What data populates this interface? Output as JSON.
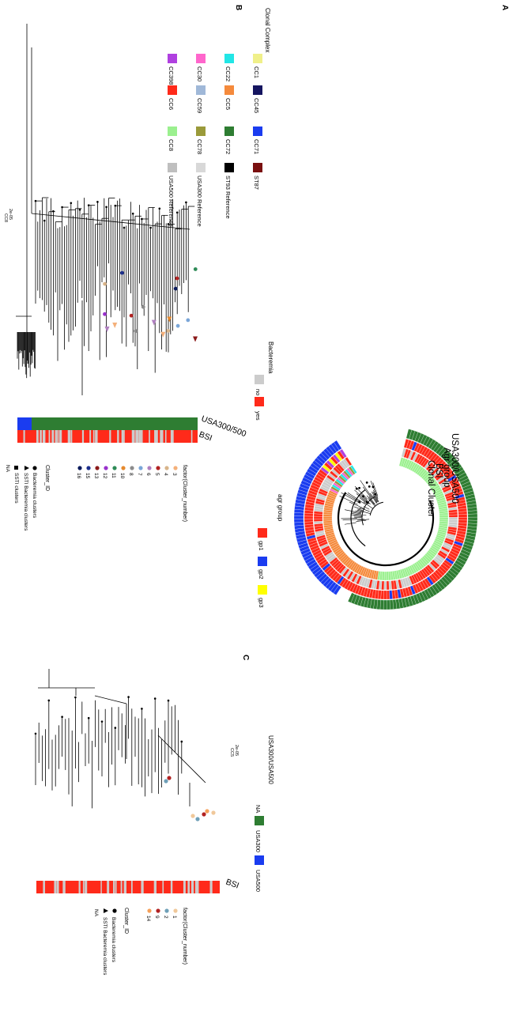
{
  "panel_labels": {
    "a": "A",
    "b": "B",
    "c": "C"
  },
  "panel_a": {
    "ring_labels": [
      "USA300/USA500",
      "Agr group",
      "BSI",
      "Clonal Cluster"
    ],
    "agr_legend": {
      "title": "agr group",
      "items": [
        {
          "label": "gp1",
          "color": "#ff2a1a"
        },
        {
          "label": "gp2",
          "color": "#1a3cf0"
        },
        {
          "label": "gp3",
          "color": "#ffff00"
        }
      ]
    },
    "colors": {
      "usa300": "#2e7d32",
      "usa500": "#1a3cf0",
      "bsi_yes": "#ff2a1a",
      "bsi_no": "#cccccc",
      "cc8": "#9bf08f",
      "cc5": "#f58a3c"
    }
  },
  "clonal_complex_legend": {
    "title": "Clonal Complex",
    "items": [
      {
        "label": "CC1",
        "color": "#f0f08a"
      },
      {
        "label": "CC22",
        "color": "#22e6e6"
      },
      {
        "label": "CC30",
        "color": "#ff66cc"
      },
      {
        "label": "CC398",
        "color": "#b040e0"
      },
      {
        "label": "CC45",
        "color": "#151560"
      },
      {
        "label": "CC5",
        "color": "#f58a3c"
      },
      {
        "label": "CC59",
        "color": "#a0b8d8"
      },
      {
        "label": "CC6",
        "color": "#ff2a1a"
      },
      {
        "label": "CC71",
        "color": "#1a3cf0"
      },
      {
        "label": "CC72",
        "color": "#2e7d32"
      },
      {
        "label": "CC78",
        "color": "#9a9a3a"
      },
      {
        "label": "CC8",
        "color": "#9bf08f"
      },
      {
        "label": "ST87",
        "color": "#7a1010"
      },
      {
        "label": "ST93 Reference",
        "color": "#000000"
      },
      {
        "label": "USA300 Reference",
        "color": "#d8d8d8"
      },
      {
        "label": "USA500 Reference",
        "color": "#bfbfbf"
      }
    ]
  },
  "panel_b": {
    "bacteremia_legend": {
      "title": "Bacteremia",
      "items": [
        {
          "label": "no",
          "color": "#cccccc"
        },
        {
          "label": "yes",
          "color": "#ff2a1a"
        }
      ]
    },
    "strip_labels": [
      "USA300/500",
      "BSI"
    ],
    "cluster_legend": {
      "title": "factor(Cluster_number)",
      "items": [
        {
          "label": "3",
          "color": "#f4b07a"
        },
        {
          "label": "4",
          "color": "#d8b48a"
        },
        {
          "label": "5",
          "color": "#b22222"
        },
        {
          "label": "6",
          "color": "#b080c0"
        },
        {
          "label": "7",
          "color": "#7aa6d8"
        },
        {
          "label": "8",
          "color": "#8c8c8c"
        },
        {
          "label": "10",
          "color": "#e68a2e"
        },
        {
          "label": "11",
          "color": "#2e8b57"
        },
        {
          "label": "12",
          "color": "#9932cc"
        },
        {
          "label": "13",
          "color": "#8b1a1a"
        },
        {
          "label": "15",
          "color": "#1c2f8c"
        },
        {
          "label": "16",
          "color": "#0a1a5c"
        }
      ]
    },
    "shape_legend": {
      "title": "Cluster_ID",
      "items": [
        "Bacteremia clusters",
        "SSTI Bacteremia clusters",
        "SSTI clusters",
        "NA"
      ]
    },
    "scale": {
      "value": "2e-05",
      "label": "CC8"
    }
  },
  "panel_c": {
    "usa_legend": {
      "title": "USA300/USA500",
      "items": [
        {
          "label": "NA",
          "color": ""
        },
        {
          "label": "USA300",
          "color": "#2e7d32"
        },
        {
          "label": "USA500",
          "color": "#1a3cf0"
        }
      ]
    },
    "strip_label": "BSI",
    "cluster_legend": {
      "title": "factor(Cluster_number)",
      "items": [
        {
          "label": "1",
          "color": "#f0c89a"
        },
        {
          "label": "2",
          "color": "#6fa0b8"
        },
        {
          "label": "9",
          "color": "#b22222"
        },
        {
          "label": "14",
          "color": "#f5a05a"
        }
      ]
    },
    "shape_legend": {
      "title": "Cluster_ID",
      "items": [
        "Bacteremia clusters",
        "SSTI Bacteremia clusters",
        "NA"
      ]
    },
    "scale": {
      "value": "2e-05",
      "label": "CC5"
    }
  }
}
